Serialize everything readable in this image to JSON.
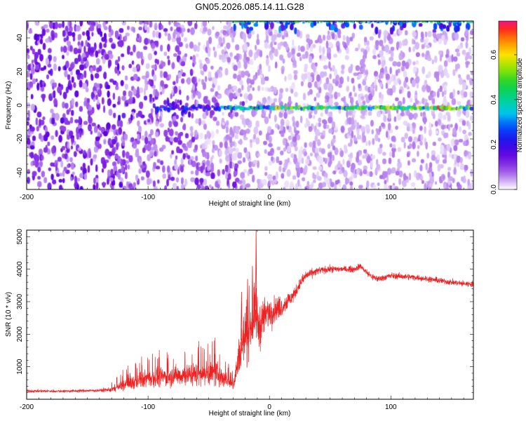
{
  "title": "GN05.2026.085.14.11.G28",
  "chart_data": [
    {
      "type": "heatmap",
      "xlabel": "Height of straight line (km)",
      "ylabel": "Frequency (Hz)",
      "xlim": [
        -200,
        168
      ],
      "ylim": [
        -50,
        50
      ],
      "x_ticks": [
        "-200",
        "-100",
        "0",
        "100"
      ],
      "y_ticks": [
        "-40",
        "-20",
        "0",
        "20",
        "40"
      ],
      "colorbar": {
        "label": "Normalized spectral amplitude",
        "range": [
          0.0,
          0.75
        ],
        "ticks": [
          "0.0",
          "0.2",
          "0.4",
          "0.6"
        ],
        "colormap": "rainbow"
      },
      "features": {
        "doppler_line_freq_hz": -1.5,
        "line_visible_from_km": -95,
        "noise_floor_amplitude": 0.08,
        "line_peak_amplitude": 0.55
      }
    },
    {
      "type": "line",
      "xlabel": "Height of straight line (km)",
      "ylabel": "SNR (10 * v/v)",
      "xlim": [
        -200,
        168
      ],
      "ylim": [
        0,
        5200
      ],
      "x_ticks": [
        "-200",
        "-100",
        "0",
        "100"
      ],
      "y_ticks": [
        "1000",
        "2000",
        "3000",
        "4000",
        "5000"
      ],
      "line_color": "#ee2222",
      "series": [
        {
          "name": "",
          "x": [
            -200,
            -170,
            -140,
            -130,
            -120,
            -100,
            -80,
            -60,
            -45,
            -35,
            -30,
            -25,
            -20,
            -16,
            -13,
            -11,
            -9,
            -5,
            0,
            10,
            20,
            25,
            30,
            40,
            50,
            60,
            70,
            75,
            80,
            85,
            90,
            100,
            120,
            140,
            160,
            168
          ],
          "y": [
            250,
            250,
            270,
            300,
            430,
            650,
            720,
            780,
            800,
            600,
            420,
            1300,
            2000,
            2300,
            2400,
            2600,
            2200,
            2500,
            2700,
            2850,
            3200,
            3550,
            3800,
            3950,
            4000,
            4000,
            4000,
            4100,
            3900,
            3750,
            3700,
            3800,
            3750,
            3650,
            3550,
            3550
          ],
          "noise_amplitude": [
            40,
            40,
            45,
            70,
            180,
            260,
            300,
            340,
            380,
            240,
            160,
            600,
            850,
            900,
            900,
            800,
            700,
            600,
            450,
            300,
            200,
            160,
            150,
            110,
            100,
            90,
            90,
            90,
            100,
            100,
            95,
            90,
            85,
            85,
            85,
            85
          ]
        }
      ],
      "spikes": [
        {
          "x": -11,
          "y": 5200
        },
        {
          "x": -14,
          "y": 4100
        },
        {
          "x": -18,
          "y": 3700
        },
        {
          "x": -23,
          "y": 3300
        }
      ]
    }
  ]
}
